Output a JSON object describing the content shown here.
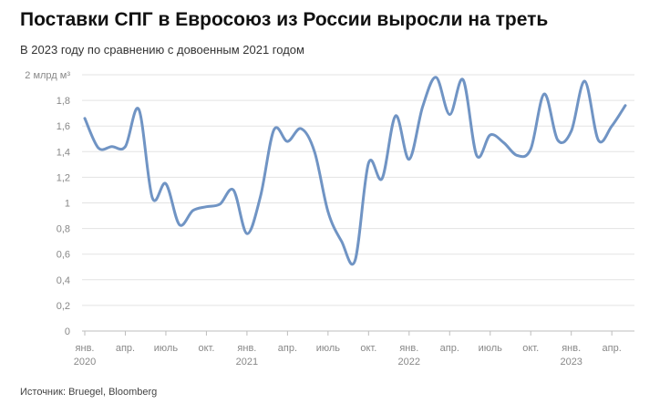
{
  "title": "Поставки СПГ в Евросоюз из России выросли на треть",
  "subtitle": "В 2023 году по сравнению с довоенным 2021 годом",
  "source": "Источник: Bruegel, Bloomberg",
  "colors": {
    "line": "#7094c4",
    "grid": "#e3e3e3",
    "tick_text": "#888888"
  },
  "chart_data": {
    "type": "line",
    "title": "Поставки СПГ в Евросоюз из России выросли на треть",
    "subtitle": "В 2023 году по сравнению с довоенным 2021 годом",
    "ylabel": "млрд м³",
    "ylim": [
      0,
      2
    ],
    "grid": true,
    "y_ticks": [
      {
        "value": 0,
        "label": "0"
      },
      {
        "value": 0.2,
        "label": "0,2"
      },
      {
        "value": 0.4,
        "label": "0,4"
      },
      {
        "value": 0.6,
        "label": "0,6"
      },
      {
        "value": 0.8,
        "label": "0,8"
      },
      {
        "value": 1.0,
        "label": "1"
      },
      {
        "value": 1.2,
        "label": "1,2"
      },
      {
        "value": 1.4,
        "label": "1,4"
      },
      {
        "value": 1.6,
        "label": "1,6"
      },
      {
        "value": 1.8,
        "label": "1,8"
      },
      {
        "value": 2.0,
        "label": "2 млрд м³"
      }
    ],
    "x_ticks": [
      {
        "month": "2020-01",
        "label": "янв.",
        "year": "2020"
      },
      {
        "month": "2020-04",
        "label": "апр.",
        "year": ""
      },
      {
        "month": "2020-07",
        "label": "июль",
        "year": ""
      },
      {
        "month": "2020-10",
        "label": "окт.",
        "year": ""
      },
      {
        "month": "2021-01",
        "label": "янв.",
        "year": "2021"
      },
      {
        "month": "2021-04",
        "label": "апр.",
        "year": ""
      },
      {
        "month": "2021-07",
        "label": "июль",
        "year": ""
      },
      {
        "month": "2021-10",
        "label": "окт.",
        "year": ""
      },
      {
        "month": "2022-01",
        "label": "янв.",
        "year": "2022"
      },
      {
        "month": "2022-04",
        "label": "апр.",
        "year": ""
      },
      {
        "month": "2022-07",
        "label": "июль",
        "year": ""
      },
      {
        "month": "2022-10",
        "label": "окт.",
        "year": ""
      },
      {
        "month": "2023-01",
        "label": "янв.",
        "year": "2023"
      },
      {
        "month": "2023-04",
        "label": "апр.",
        "year": ""
      }
    ],
    "x_start": "2020-01",
    "x_end": "2023-05",
    "series": [
      {
        "points": [
          [
            "2020-01",
            1.66
          ],
          [
            "2020-02",
            1.43
          ],
          [
            "2020-03",
            1.44
          ],
          [
            "2020-04",
            1.44
          ],
          [
            "2020-05",
            1.73
          ],
          [
            "2020-06",
            1.04
          ],
          [
            "2020-07",
            1.15
          ],
          [
            "2020-08",
            0.83
          ],
          [
            "2020-09",
            0.94
          ],
          [
            "2020-10",
            0.97
          ],
          [
            "2020-11",
            0.99
          ],
          [
            "2020-12",
            1.1
          ],
          [
            "2021-01",
            0.76
          ],
          [
            "2021-02",
            1.05
          ],
          [
            "2021-03",
            1.57
          ],
          [
            "2021-04",
            1.48
          ],
          [
            "2021-05",
            1.58
          ],
          [
            "2021-06",
            1.4
          ],
          [
            "2021-07",
            0.93
          ],
          [
            "2021-08",
            0.7
          ],
          [
            "2021-09",
            0.55
          ],
          [
            "2021-10",
            1.31
          ],
          [
            "2021-11",
            1.19
          ],
          [
            "2021-12",
            1.68
          ],
          [
            "2022-01",
            1.34
          ],
          [
            "2022-02",
            1.75
          ],
          [
            "2022-03",
            1.98
          ],
          [
            "2022-04",
            1.69
          ],
          [
            "2022-05",
            1.96
          ],
          [
            "2022-06",
            1.37
          ],
          [
            "2022-07",
            1.53
          ],
          [
            "2022-08",
            1.47
          ],
          [
            "2022-09",
            1.37
          ],
          [
            "2022-10",
            1.42
          ],
          [
            "2022-11",
            1.85
          ],
          [
            "2022-12",
            1.49
          ],
          [
            "2023-01",
            1.56
          ],
          [
            "2023-02",
            1.95
          ],
          [
            "2023-03",
            1.49
          ],
          [
            "2023-04",
            1.6
          ],
          [
            "2023-05",
            1.76
          ]
        ]
      }
    ]
  }
}
